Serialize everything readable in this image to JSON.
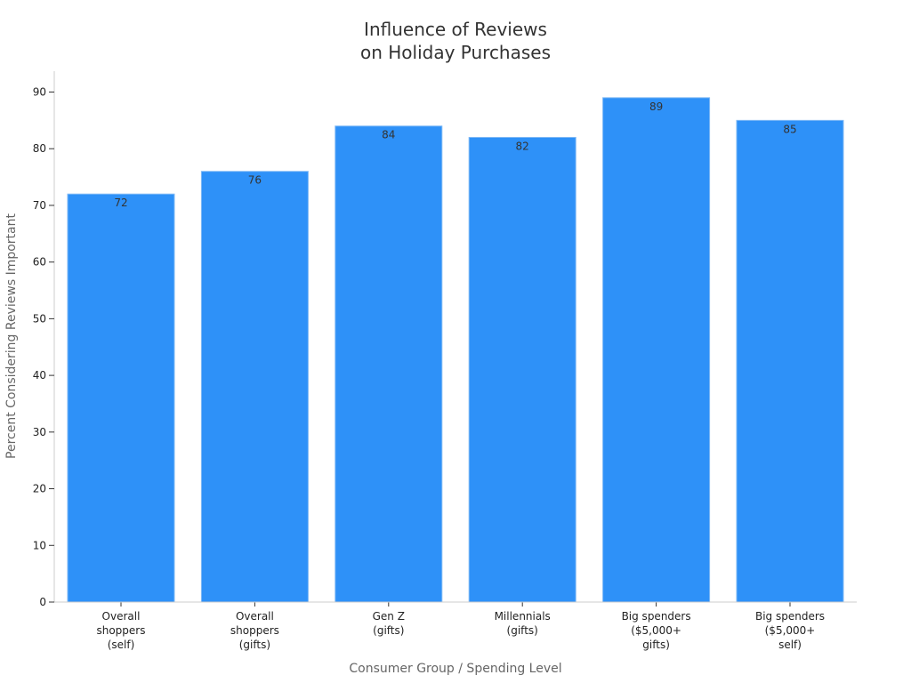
{
  "chart_data": {
    "type": "bar",
    "title": [
      "Influence of Reviews",
      "on Holiday Purchases"
    ],
    "xlabel": "Consumer Group / Spending Level",
    "ylabel": "Percent Considering Reviews Important",
    "categories": [
      [
        "Overall",
        "shoppers",
        "(self)"
      ],
      [
        "Overall",
        "shoppers",
        "(gifts)"
      ],
      [
        "Gen Z",
        "(gifts)"
      ],
      [
        "Millennials",
        "(gifts)"
      ],
      [
        "Big spenders",
        "($5,000+",
        "gifts)"
      ],
      [
        "Big spenders",
        "($5,000+",
        "self)"
      ]
    ],
    "values": [
      72,
      76,
      84,
      82,
      89,
      85
    ],
    "ylim": [
      0,
      93
    ],
    "yticks": [
      0,
      10,
      20,
      30,
      40,
      50,
      60,
      70,
      80,
      90
    ],
    "grid": false,
    "data_labels": true,
    "colors": {
      "bar": "#2e91f8",
      "bar_edge": "#7fb9f5",
      "axis": "#cccccc",
      "tick": "#333333"
    }
  }
}
